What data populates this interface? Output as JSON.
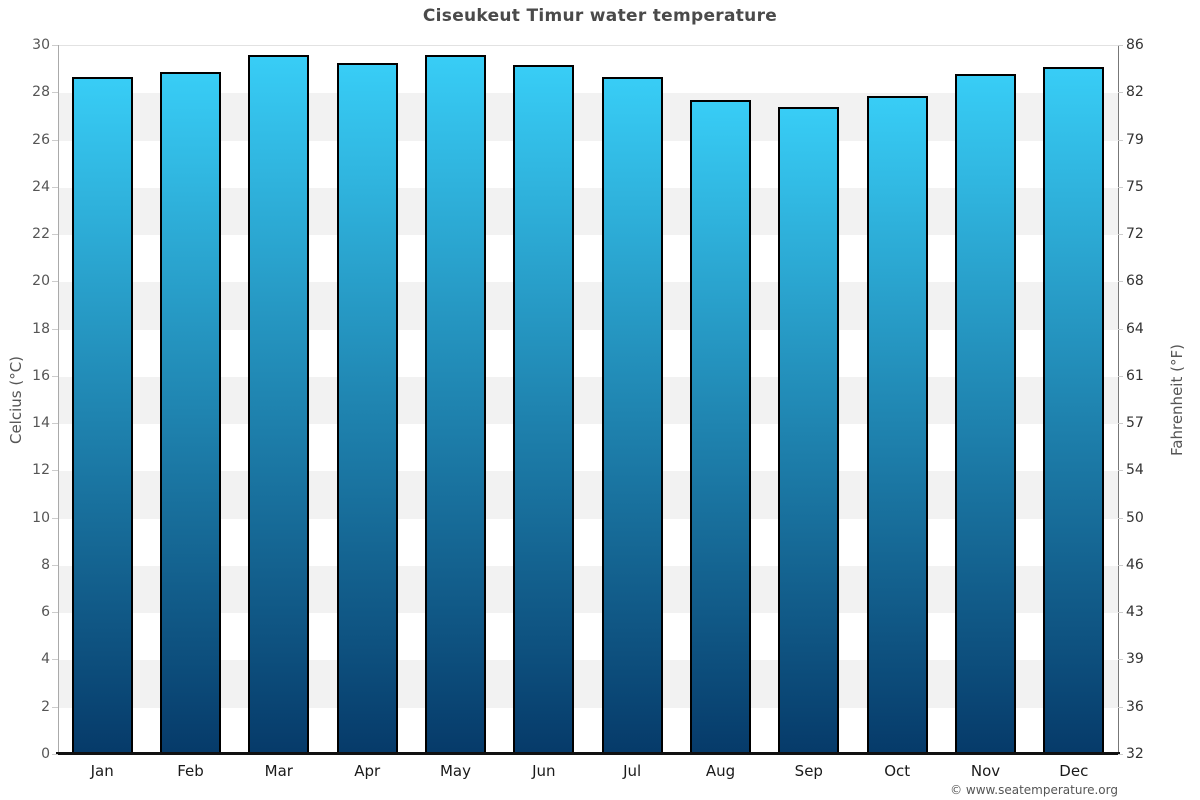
{
  "title": "Ciseukeut Timur water temperature",
  "footer": {
    "copyright": "© www.seatemperature.org"
  },
  "chart_data": {
    "type": "bar",
    "title": "Ciseukeut Timur water temperature",
    "categories": [
      "Jan",
      "Feb",
      "Mar",
      "Apr",
      "May",
      "Jun",
      "Jul",
      "Aug",
      "Sep",
      "Oct",
      "Nov",
      "Dec"
    ],
    "values": [
      28.7,
      28.9,
      29.6,
      29.3,
      29.6,
      29.2,
      28.7,
      27.7,
      27.4,
      27.9,
      28.8,
      29.1
    ],
    "unit": "°C",
    "xlabel": "",
    "ylabel_left": "Celcius (°C)",
    "ylabel_right": "Fahrenheit (°F)",
    "ylim": [
      0,
      30
    ],
    "yticks_celsius": [
      0,
      2,
      4,
      6,
      8,
      10,
      12,
      14,
      16,
      18,
      20,
      22,
      24,
      26,
      28,
      30
    ],
    "yticks_fahrenheit": [
      32,
      36,
      39,
      43,
      46,
      50,
      54,
      57,
      61,
      64,
      68,
      72,
      75,
      79,
      82,
      86
    ],
    "legend": "none",
    "grid": "alternating-horizontal-bands",
    "colors": {
      "bar_gradient_top": "#38cdf6",
      "bar_gradient_bottom": "#063a69",
      "bar_border": "#000000",
      "band_gray": "#f2f2f2",
      "band_white": "#ffffff",
      "title": "#4a4a4a",
      "tick_text": "#555555",
      "baseline": "#111111"
    }
  }
}
